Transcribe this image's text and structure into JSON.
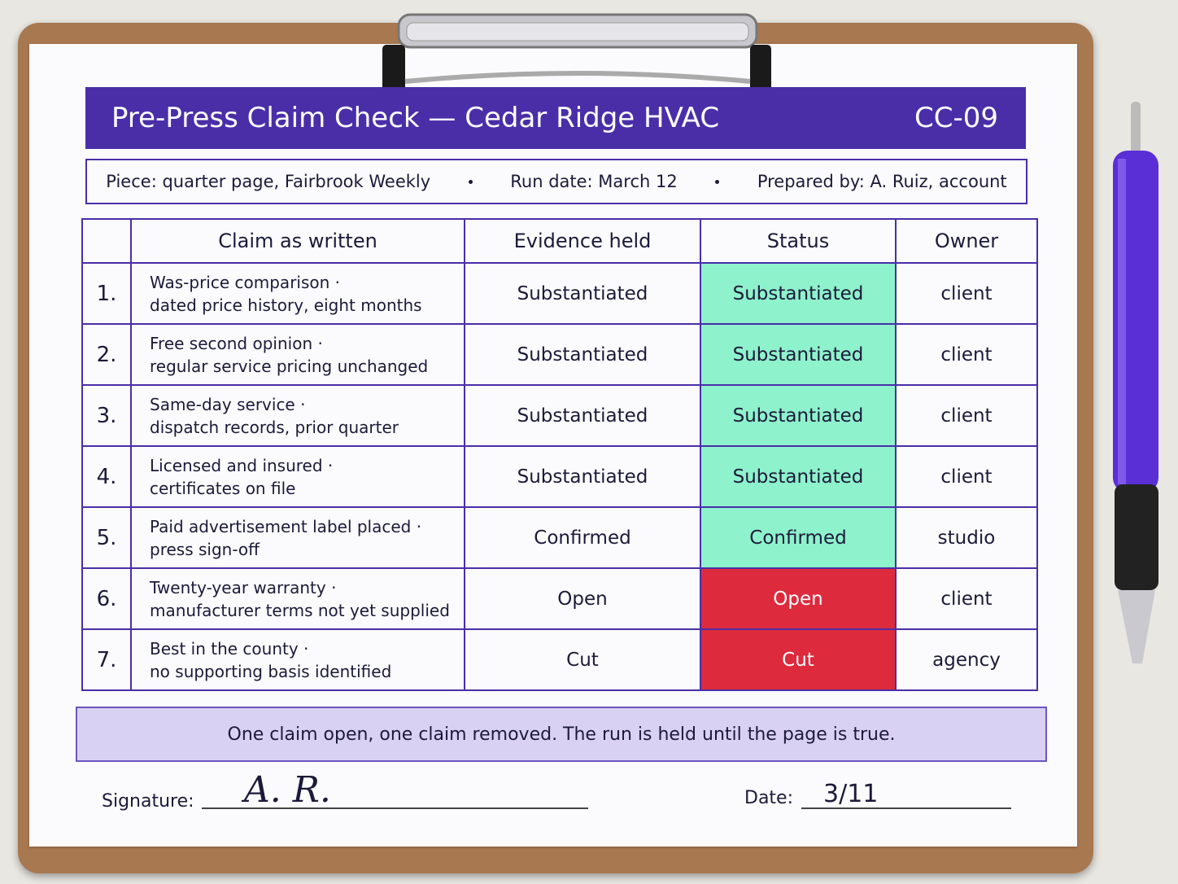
{
  "header": {
    "title": "Pre-Press Claim Check — Cedar Ridge HVAC",
    "code": "CC-09"
  },
  "info": [
    "Piece: quarter page, Fairbrook Weekly",
    "Run date: March 12",
    "Prepared by: A. Ruiz, account"
  ],
  "table": {
    "columns": [
      "Claim as written",
      "Evidence held",
      "Status",
      "Owner"
    ],
    "rows": [
      {
        "number": "1.",
        "claim": "Was-price comparison ·",
        "detail": "dated price history, eight months",
        "evidence": "Substantiated",
        "status": "Substantiated",
        "status_color": "#8ef2cc",
        "owner": "client"
      },
      {
        "number": "2.",
        "claim": "Free second opinion ·",
        "detail": "regular service pricing unchanged",
        "evidence": "Substantiated",
        "status": "Substantiated",
        "status_color": "#8ef2cc",
        "owner": "client"
      },
      {
        "number": "3.",
        "claim": "Same-day service ·",
        "detail": "dispatch records, prior quarter",
        "evidence": "Substantiated",
        "status": "Substantiated",
        "status_color": "#8ef2cc",
        "owner": "client"
      },
      {
        "number": "4.",
        "claim": "Licensed and insured ·",
        "detail": "certificates on file",
        "evidence": "Substantiated",
        "status": "Substantiated",
        "status_color": "#8ef2cc",
        "owner": "client"
      },
      {
        "number": "5.",
        "claim": "Paid advertisement label placed ·",
        "detail": "press sign-off",
        "evidence": "Confirmed",
        "status": "Confirmed",
        "status_color": "#8ef2cc",
        "owner": "studio"
      },
      {
        "number": "6.",
        "claim": "Twenty-year warranty ·",
        "detail": "manufacturer terms not yet supplied",
        "evidence": "Open",
        "status": "Open",
        "status_color": "#dd2a3c",
        "owner": "client"
      },
      {
        "number": "7.",
        "claim": "Best in the county ·",
        "detail": "no supporting basis identified",
        "evidence": "Cut",
        "status": "Cut",
        "status_color": "#dd2a3c",
        "owner": "agency"
      }
    ]
  },
  "note": "One claim open, one claim removed. The run is held until the page is true.",
  "signature": {
    "label": "Signature:",
    "value": "A. R.",
    "date_label": "Date:",
    "date": "3/11"
  }
}
